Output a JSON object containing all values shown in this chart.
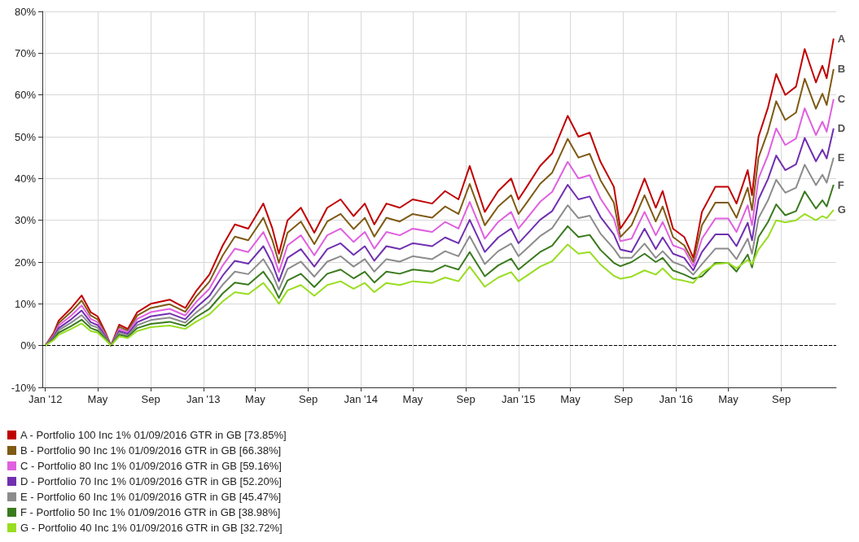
{
  "chart_data": {
    "type": "line",
    "x": [
      "2012-01-01",
      "2012-01-20",
      "2012-02-01",
      "2012-03-01",
      "2012-03-25",
      "2012-04-15",
      "2012-05-01",
      "2012-05-20",
      "2012-06-01",
      "2012-06-20",
      "2012-07-10",
      "2012-08-01",
      "2012-09-01",
      "2012-10-15",
      "2012-11-20",
      "2012-12-15",
      "2013-01-15",
      "2013-02-15",
      "2013-03-15",
      "2013-04-15",
      "2013-05-20",
      "2013-06-10",
      "2013-06-25",
      "2013-07-15",
      "2013-08-15",
      "2013-09-15",
      "2013-10-15",
      "2013-11-15",
      "2013-12-15",
      "2014-01-10",
      "2014-02-01",
      "2014-03-01",
      "2014-04-01",
      "2014-05-01",
      "2014-06-15",
      "2014-07-15",
      "2014-08-15",
      "2014-09-10",
      "2014-10-15",
      "2014-11-15",
      "2014-12-15",
      "2015-01-01",
      "2015-01-20",
      "2015-02-20",
      "2015-03-20",
      "2015-04-25",
      "2015-05-20",
      "2015-06-15",
      "2015-07-10",
      "2015-08-10",
      "2015-08-25",
      "2015-09-20",
      "2015-10-20",
      "2015-11-15",
      "2015-12-01",
      "2015-12-25",
      "2016-01-20",
      "2016-02-10",
      "2016-03-01",
      "2016-04-01",
      "2016-05-01",
      "2016-05-20",
      "2016-06-15",
      "2016-06-25",
      "2016-07-10",
      "2016-08-01",
      "2016-08-20",
      "2016-09-10",
      "2016-10-05",
      "2016-10-25",
      "2016-11-20",
      "2016-12-05",
      "2016-12-15",
      "2016-12-31"
    ],
    "series": [
      {
        "name": "A - Portfolio 100 Inc 1% 01/09/2016 GTR in GB [73.85%]",
        "color": "#c00000",
        "values": [
          0,
          3,
          6,
          9,
          12,
          8,
          7,
          3,
          0,
          5,
          4,
          8,
          10,
          11,
          9,
          13,
          17,
          24,
          29,
          28,
          34,
          28,
          22,
          30,
          33,
          27,
          33,
          35,
          31,
          34,
          29,
          34,
          33,
          35,
          34,
          37,
          35,
          43,
          32,
          37,
          40,
          35,
          38,
          43,
          46,
          55,
          50,
          51,
          44,
          38,
          28,
          32,
          40,
          33,
          37,
          28,
          26,
          21,
          32,
          38,
          38,
          34,
          42,
          36,
          50,
          57,
          65,
          60,
          62,
          71,
          63,
          67,
          64,
          73.5
        ]
      },
      {
        "name": "B - Portfolio 90 Inc 1% 01/09/2016 GTR in GB [66.38%]",
        "color": "#7f5a14",
        "values": [
          0,
          2.7,
          5.4,
          8.1,
          10.8,
          7.2,
          6.3,
          2.7,
          0,
          4.5,
          3.6,
          7.2,
          9,
          9.9,
          8.1,
          11.7,
          15.3,
          21.6,
          26.1,
          25.2,
          30.6,
          25.2,
          19.8,
          27,
          29.7,
          24.3,
          29.7,
          31.5,
          27.9,
          30.6,
          26.1,
          30.6,
          29.7,
          31.5,
          30.6,
          33.3,
          31.5,
          38.7,
          28.8,
          33.3,
          36,
          31.5,
          34.2,
          38.7,
          41.4,
          49.5,
          45,
          45.9,
          39.6,
          34.2,
          26,
          28.8,
          36,
          29.7,
          33.3,
          26,
          24,
          20,
          28.8,
          34.2,
          34.2,
          30.6,
          37.8,
          32.4,
          45,
          51.3,
          58.5,
          54,
          55.8,
          63.9,
          56.7,
          60.3,
          57.6,
          66.2
        ]
      },
      {
        "name": "C - Portfolio 80 Inc 1% 01/09/2016 GTR in GB [59.16%]",
        "color": "#e060e0",
        "values": [
          0,
          2.4,
          4.8,
          7.2,
          9.6,
          6.4,
          5.6,
          2.4,
          0,
          4,
          3.2,
          6.4,
          8,
          8.8,
          7.2,
          10.4,
          13.6,
          19.2,
          23.2,
          22.4,
          27.2,
          22.4,
          17.6,
          24,
          26.4,
          21.6,
          26.4,
          28,
          24.8,
          27.2,
          23.2,
          27.2,
          26.4,
          28,
          27.2,
          29.6,
          28,
          34.4,
          25.6,
          29.6,
          32,
          28,
          30.4,
          34.4,
          36.8,
          44,
          40,
          40.8,
          35.2,
          30.4,
          25,
          25.6,
          32,
          26.4,
          29.6,
          24,
          23,
          19,
          25.6,
          30.4,
          30.4,
          27.2,
          33.6,
          28.8,
          40,
          45.6,
          52,
          48,
          49.6,
          56.8,
          50.4,
          53.6,
          51.2,
          59
        ]
      },
      {
        "name": "D - Portfolio 70 Inc 1% 01/09/2016 GTR in GB [52.20%]",
        "color": "#7030b0",
        "values": [
          0,
          2.1,
          4.2,
          6.3,
          8.4,
          5.6,
          4.9,
          2.1,
          0,
          3.5,
          2.8,
          5.6,
          7,
          7.7,
          6.3,
          9.1,
          11.9,
          16.8,
          20.3,
          19.6,
          23.8,
          19.6,
          15.4,
          21,
          23.1,
          18.9,
          23.1,
          24.5,
          21.7,
          23.8,
          20.3,
          23.8,
          23.1,
          24.5,
          23.8,
          25.9,
          24.5,
          30.1,
          22.4,
          25.9,
          28,
          24.5,
          26.6,
          30.1,
          32.2,
          38.5,
          35,
          35.7,
          30.8,
          26.6,
          23,
          22.4,
          28,
          23.1,
          25.9,
          22,
          21,
          18,
          22.4,
          26.6,
          26.6,
          23.8,
          29.4,
          25.2,
          35,
          39.9,
          45.5,
          42,
          43.4,
          49.7,
          44.1,
          46.9,
          44.8,
          52
        ]
      },
      {
        "name": "E - Portfolio 60 Inc 1% 01/09/2016 GTR in GB [45.47%]",
        "color": "#8c8c8c",
        "values": [
          0,
          1.8,
          3.7,
          5.5,
          7.3,
          4.9,
          4.3,
          1.8,
          0,
          3.1,
          2.4,
          4.9,
          6.1,
          6.7,
          5.5,
          7.9,
          10.4,
          14.6,
          17.7,
          17.1,
          20.7,
          17.1,
          13.4,
          18.3,
          20.1,
          16.5,
          20.1,
          21.4,
          18.9,
          20.7,
          17.7,
          20.7,
          20.1,
          21.4,
          20.7,
          22.6,
          21.4,
          26.2,
          19.5,
          22.6,
          24.4,
          21.4,
          23.2,
          26.2,
          28.1,
          33.6,
          30.5,
          31.1,
          26.8,
          23.2,
          21,
          21,
          24.4,
          21,
          22.6,
          20,
          19,
          17,
          19.5,
          23.2,
          23.2,
          20.7,
          25.6,
          22,
          30.5,
          34.8,
          39.7,
          36.6,
          37.8,
          43.3,
          38.4,
          40.9,
          39,
          45
        ]
      },
      {
        "name": "F - Portfolio 50 Inc 1% 01/09/2016 GTR in GB [38.98%]",
        "color": "#3a7a1e",
        "values": [
          0,
          1.6,
          3.1,
          4.7,
          6.2,
          4.2,
          3.6,
          1.6,
          0,
          2.6,
          2.1,
          4.2,
          5.2,
          5.7,
          4.7,
          6.8,
          8.8,
          12.5,
          15.1,
          14.6,
          17.7,
          14.6,
          11.4,
          15.6,
          17.2,
          14,
          17.2,
          18.2,
          16.1,
          17.7,
          15.1,
          17.7,
          17.2,
          18.2,
          17.7,
          19.2,
          18.2,
          22.4,
          16.6,
          19.2,
          20.8,
          18.2,
          19.8,
          22.4,
          23.9,
          28.6,
          26,
          26.5,
          22.9,
          19.8,
          19,
          20,
          22,
          20,
          21,
          18,
          17,
          16,
          16.6,
          19.8,
          19.8,
          17.7,
          21.8,
          18.7,
          26,
          29.6,
          33.8,
          31.2,
          32.2,
          36.9,
          32.8,
          34.8,
          33.3,
          38.5
        ]
      },
      {
        "name": "G - Portfolio 40 Inc 1% 01/09/2016 GTR in GB [32.72%]",
        "color": "#99dd22",
        "values": [
          0,
          1.3,
          2.6,
          4,
          5.3,
          3.5,
          3.1,
          1.3,
          0,
          2.2,
          1.8,
          3.5,
          4.4,
          4.8,
          4,
          5.7,
          7.5,
          10.6,
          12.8,
          12.3,
          15,
          12.3,
          10,
          13.2,
          14.5,
          11.9,
          14.5,
          15.4,
          13.6,
          15,
          12.8,
          15,
          14.5,
          15.4,
          15,
          16.3,
          15.4,
          18.9,
          14.1,
          16.3,
          17.6,
          15.4,
          16.7,
          18.9,
          20.2,
          24.2,
          22,
          22.4,
          19.4,
          16.7,
          16,
          16.5,
          18,
          17,
          18.5,
          16,
          15.5,
          15,
          17.5,
          19.5,
          19.8,
          18.5,
          20.5,
          19.5,
          23,
          26,
          30,
          29.5,
          30,
          31.5,
          30,
          31,
          30.5,
          32.5
        ]
      }
    ],
    "annotations": [
      {
        "text": "A",
        "x": "2016-12-31",
        "y": 73.5
      },
      {
        "text": "B",
        "x": "2016-12-31",
        "y": 66.2
      },
      {
        "text": "C",
        "x": "2016-12-31",
        "y": 59
      },
      {
        "text": "D",
        "x": "2016-12-31",
        "y": 52
      },
      {
        "text": "E",
        "x": "2016-12-31",
        "y": 45
      },
      {
        "text": "F",
        "x": "2016-12-31",
        "y": 38.5
      },
      {
        "text": "G",
        "x": "2016-12-31",
        "y": 32.5
      }
    ],
    "xlim": [
      "2011-12-25",
      "2017-01-06"
    ],
    "xticks": [
      {
        "value": "2012-01-01",
        "label": "Jan '12"
      },
      {
        "value": "2012-05-01",
        "label": "May"
      },
      {
        "value": "2012-09-01",
        "label": "Sep"
      },
      {
        "value": "2013-01-01",
        "label": "Jan '13"
      },
      {
        "value": "2013-05-01",
        "label": "May"
      },
      {
        "value": "2013-09-01",
        "label": "Sep"
      },
      {
        "value": "2014-01-01",
        "label": "Jan '14"
      },
      {
        "value": "2014-05-01",
        "label": "May"
      },
      {
        "value": "2014-09-01",
        "label": "Sep"
      },
      {
        "value": "2015-01-01",
        "label": "Jan '15"
      },
      {
        "value": "2015-05-01",
        "label": "May"
      },
      {
        "value": "2015-09-01",
        "label": "Sep"
      },
      {
        "value": "2016-01-01",
        "label": "Jan '16"
      },
      {
        "value": "2016-05-01",
        "label": "May"
      },
      {
        "value": "2016-09-01",
        "label": "Sep"
      }
    ],
    "ylim": [
      -10,
      80
    ],
    "yticks": [
      {
        "value": -10,
        "label": "-10%"
      },
      {
        "value": 0,
        "label": "0%"
      },
      {
        "value": 10,
        "label": "10%"
      },
      {
        "value": 20,
        "label": "20%"
      },
      {
        "value": 30,
        "label": "30%"
      },
      {
        "value": 40,
        "label": "40%"
      },
      {
        "value": 50,
        "label": "50%"
      },
      {
        "value": 60,
        "label": "60%"
      },
      {
        "value": 70,
        "label": "70%"
      },
      {
        "value": 80,
        "label": "80%"
      }
    ],
    "ref_lines": [
      {
        "axis": "y",
        "value": 0,
        "color": "#000000",
        "line_style": "dashed"
      }
    ],
    "grid": true,
    "legend": "bottom left",
    "line_style": "solid"
  }
}
